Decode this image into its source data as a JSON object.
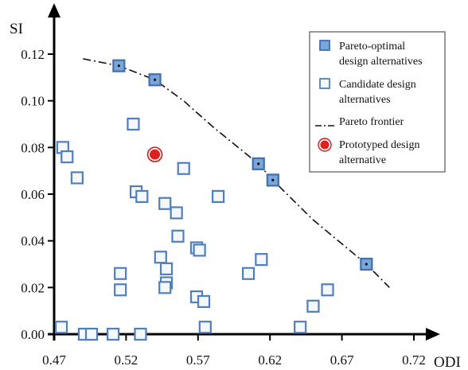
{
  "chart_data": {
    "type": "scatter",
    "xlabel": "ODI",
    "ylabel": "SI",
    "xlim": [
      0.47,
      0.72
    ],
    "ylim": [
      0.0,
      0.12
    ],
    "x_ticks": [
      "0.47",
      "0.52",
      "0.57",
      "0.62",
      "0.67",
      "0.72"
    ],
    "y_ticks": [
      "0.00",
      "0.02",
      "0.04",
      "0.06",
      "0.08",
      "0.10",
      "0.12"
    ],
    "grid": false,
    "legend_position": "top-right",
    "series": [
      {
        "name": "Pareto-optimal design alternatives",
        "marker": "filled-square",
        "color": "#7aa7d8",
        "points": [
          {
            "x": 0.515,
            "y": 0.115
          },
          {
            "x": 0.54,
            "y": 0.109
          },
          {
            "x": 0.612,
            "y": 0.073
          },
          {
            "x": 0.622,
            "y": 0.066
          },
          {
            "x": 0.687,
            "y": 0.03
          }
        ]
      },
      {
        "name": "Candidate design alternatives",
        "marker": "hollow-square",
        "color": "#4f7fbf",
        "points": [
          {
            "x": 0.476,
            "y": 0.08
          },
          {
            "x": 0.479,
            "y": 0.076
          },
          {
            "x": 0.486,
            "y": 0.067
          },
          {
            "x": 0.525,
            "y": 0.09
          },
          {
            "x": 0.527,
            "y": 0.061
          },
          {
            "x": 0.531,
            "y": 0.059
          },
          {
            "x": 0.56,
            "y": 0.071
          },
          {
            "x": 0.547,
            "y": 0.056
          },
          {
            "x": 0.555,
            "y": 0.052
          },
          {
            "x": 0.584,
            "y": 0.059
          },
          {
            "x": 0.556,
            "y": 0.042
          },
          {
            "x": 0.569,
            "y": 0.037
          },
          {
            "x": 0.571,
            "y": 0.036
          },
          {
            "x": 0.544,
            "y": 0.033
          },
          {
            "x": 0.548,
            "y": 0.028
          },
          {
            "x": 0.516,
            "y": 0.026
          },
          {
            "x": 0.548,
            "y": 0.022
          },
          {
            "x": 0.547,
            "y": 0.02
          },
          {
            "x": 0.516,
            "y": 0.019
          },
          {
            "x": 0.569,
            "y": 0.016
          },
          {
            "x": 0.574,
            "y": 0.014
          },
          {
            "x": 0.605,
            "y": 0.026
          },
          {
            "x": 0.614,
            "y": 0.032
          },
          {
            "x": 0.66,
            "y": 0.019
          },
          {
            "x": 0.65,
            "y": 0.012
          },
          {
            "x": 0.475,
            "y": 0.003
          },
          {
            "x": 0.491,
            "y": 0.0
          },
          {
            "x": 0.496,
            "y": 0.0
          },
          {
            "x": 0.511,
            "y": 0.0
          },
          {
            "x": 0.53,
            "y": 0.0
          },
          {
            "x": 0.575,
            "y": 0.003
          },
          {
            "x": 0.641,
            "y": 0.003
          }
        ]
      },
      {
        "name": "Pareto frontier",
        "marker": "dash-dot-line",
        "color": "#111111",
        "points": [
          {
            "x": 0.49,
            "y": 0.118
          },
          {
            "x": 0.515,
            "y": 0.115
          },
          {
            "x": 0.54,
            "y": 0.109
          },
          {
            "x": 0.56,
            "y": 0.1
          },
          {
            "x": 0.58,
            "y": 0.089
          },
          {
            "x": 0.6,
            "y": 0.079
          },
          {
            "x": 0.612,
            "y": 0.073
          },
          {
            "x": 0.622,
            "y": 0.066
          },
          {
            "x": 0.65,
            "y": 0.049
          },
          {
            "x": 0.687,
            "y": 0.03
          },
          {
            "x": 0.703,
            "y": 0.02
          }
        ]
      },
      {
        "name": "Prototyped design alternative",
        "marker": "red-circle",
        "color": "#e02020",
        "points": [
          {
            "x": 0.54,
            "y": 0.077
          }
        ]
      }
    ],
    "legend": [
      {
        "marker": "filled-square",
        "lines": [
          "Pareto-optimal",
          "design alternatives"
        ]
      },
      {
        "marker": "hollow-square",
        "lines": [
          "Candidate design",
          "alternatives"
        ]
      },
      {
        "marker": "dash-dot-line",
        "lines": [
          "Pareto frontier"
        ]
      },
      {
        "marker": "red-circle",
        "lines": [
          "Prototyped design",
          "alternative"
        ]
      }
    ]
  }
}
